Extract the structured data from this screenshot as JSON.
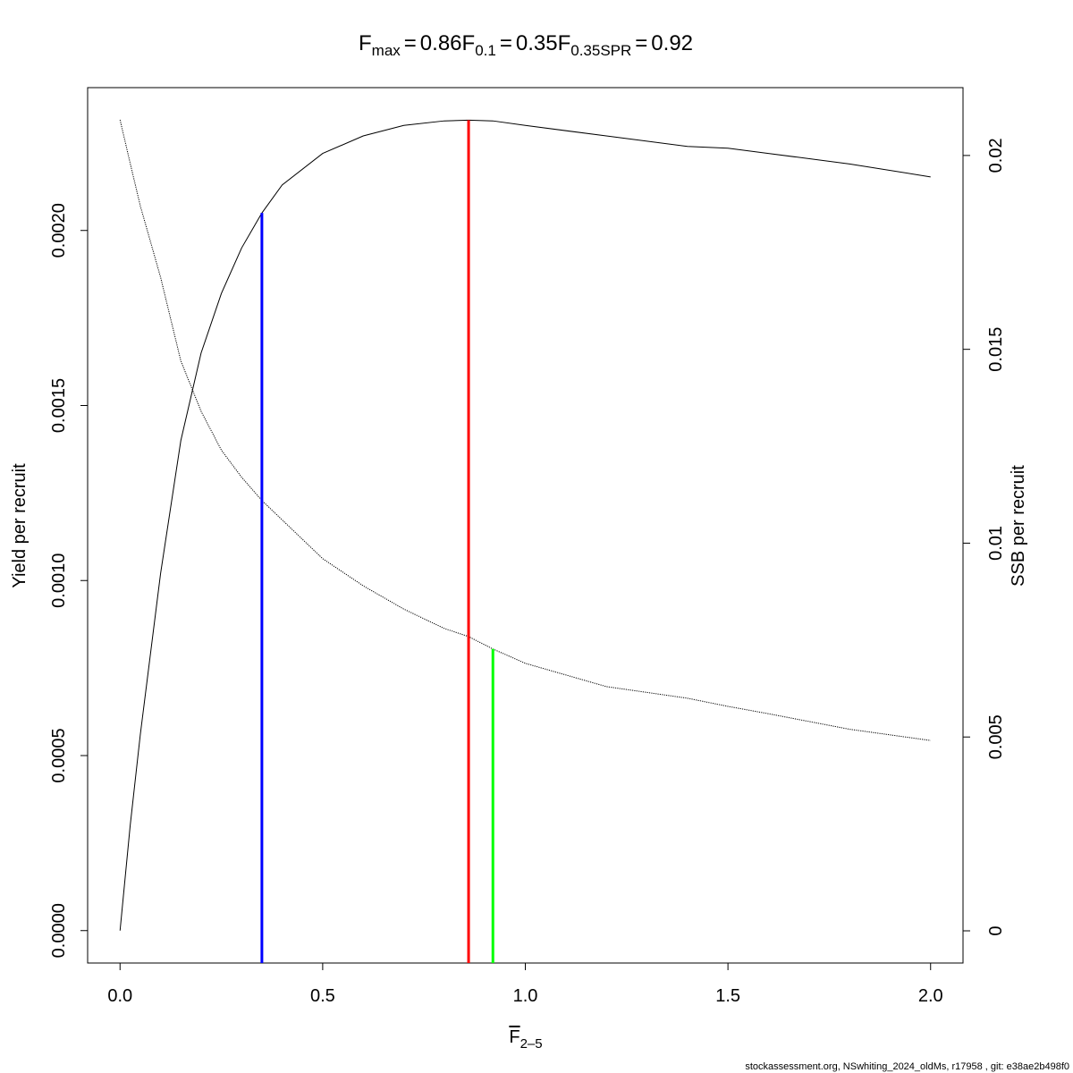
{
  "chart_data": {
    "type": "line",
    "title": [
      {
        "symbol": "F",
        "subscript": "max",
        "sign": "=",
        "value": 0.86
      },
      {
        "symbol": "F",
        "subscript": "0.1",
        "sign": "=",
        "value": 0.35
      },
      {
        "symbol": "F",
        "subscript": "0.35SPR",
        "sign": "=",
        "value": 0.92
      }
    ],
    "x_label": {
      "symbol": "F",
      "subscript": "2–5"
    },
    "y_label": "Yield per recruit",
    "y2_label": "SSB per recruit",
    "footer": "stockassessment.org, NSwhiting_2024_oldMs, r17958 , git: e38ae2b498f0",
    "x": [
      0,
      0.025,
      0.05,
      0.1,
      0.15,
      0.2,
      0.25,
      0.3,
      0.35,
      0.4,
      0.5,
      0.6,
      0.7,
      0.8,
      0.86,
      0.92,
      1.0,
      1.2,
      1.4,
      1.5,
      1.6,
      1.8,
      2.0
    ],
    "series": [
      {
        "color": "#000000",
        "style": "solid",
        "axis": "y",
        "values": [
          0,
          0.0003,
          0.00056,
          0.00102,
          0.0014,
          0.00165,
          0.00182,
          0.00195,
          0.00205,
          0.00213,
          0.00222,
          0.00227,
          0.0023,
          0.002313,
          0.002315,
          0.002313,
          0.0023,
          0.00227,
          0.00224,
          0.002235,
          0.00222,
          0.00219,
          0.002153
        ]
      },
      {
        "color": "#000000",
        "style": "dotted",
        "axis": "y2",
        "values": [
          0.02092,
          0.0198,
          0.0187,
          0.01686,
          0.0147,
          0.0134,
          0.0124,
          0.0117,
          0.0111,
          0.0106,
          0.0096,
          0.0089,
          0.0083,
          0.0078,
          0.00759,
          0.00727,
          0.0069,
          0.0063,
          0.006,
          0.00579,
          0.0056,
          0.0052,
          0.00491
        ]
      }
    ],
    "reference_lines": [
      {
        "title_index": 0,
        "y": 0.002315,
        "axis": "y",
        "color": "#ff0000"
      },
      {
        "title_index": 1,
        "y": 0.00205,
        "axis": "y",
        "color": "#0000ff"
      },
      {
        "title_index": 2,
        "y": 0.00727,
        "axis": "y2",
        "color": "#00ff00"
      }
    ],
    "xlim": [
      -0.08,
      2.08
    ],
    "ylim": [
      -9.26e-05,
      0.002408
    ],
    "y2lim": [
      -0.00083,
      0.02175
    ],
    "xticks": [
      {
        "value": 0,
        "label": "0.0"
      },
      0.5,
      {
        "value": 1,
        "label": "1.0"
      },
      1.5,
      {
        "value": 2,
        "label": "2.0"
      }
    ],
    "yticks": [
      {
        "value": 0,
        "label": "0.0000"
      },
      {
        "value": 0.0005,
        "label": "0.0005"
      },
      {
        "value": 0.001,
        "label": "0.0010"
      },
      {
        "value": 0.0015,
        "label": "0.0015"
      },
      {
        "value": 0.002,
        "label": "0.0020"
      }
    ],
    "y2ticks": [
      0,
      0.005,
      0.01,
      0.015,
      0.02
    ]
  }
}
